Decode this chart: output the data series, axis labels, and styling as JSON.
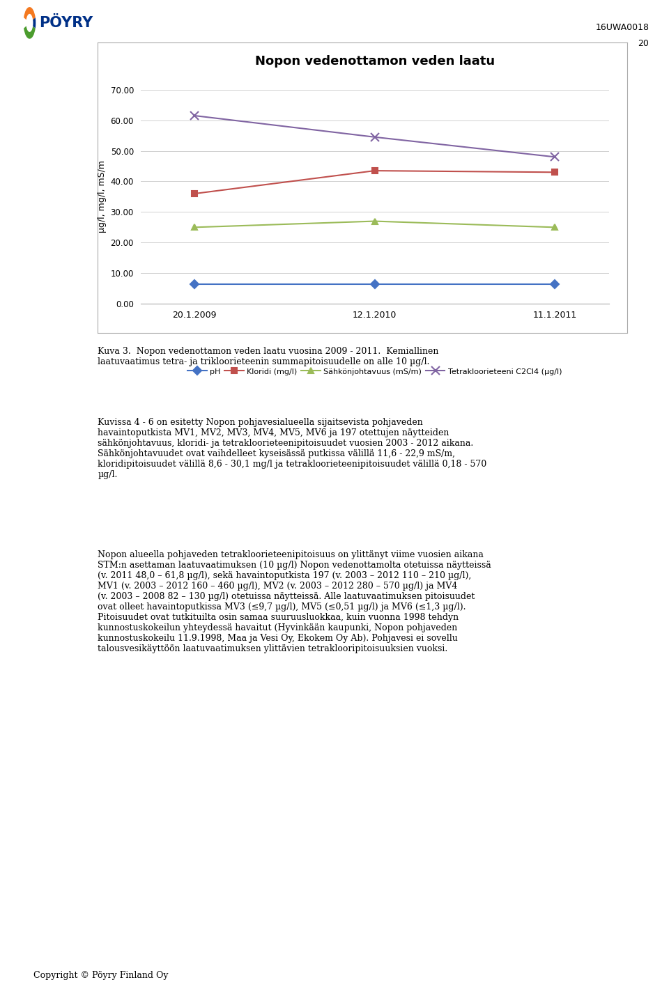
{
  "title": "Nopon vedenottamon veden laatu",
  "x_labels": [
    "20.1.2009",
    "12.1.2010",
    "11.1.2011"
  ],
  "x_positions": [
    0,
    1,
    2
  ],
  "series_order": [
    "pH",
    "Kloridi (mg/l)",
    "Sähkönjohtavuus (mS/m)",
    "Tetrakloorieteeni C2Cl4 (µg/l)"
  ],
  "series": {
    "pH": {
      "values": [
        6.5,
        6.5,
        6.5
      ],
      "color": "#4472C4",
      "marker": "D",
      "markersize": 6,
      "linewidth": 1.5
    },
    "Kloridi (mg/l)": {
      "values": [
        36.0,
        43.5,
        43.0
      ],
      "color": "#C0504D",
      "marker": "s",
      "markersize": 6,
      "linewidth": 1.5
    },
    "Sähkönjohtavuus (mS/m)": {
      "values": [
        25.0,
        27.0,
        25.0
      ],
      "color": "#9BBB59",
      "marker": "^",
      "markersize": 6,
      "linewidth": 1.5
    },
    "Tetrakloorieteeni C2Cl4 (µg/l)": {
      "values": [
        61.5,
        54.5,
        48.0
      ],
      "color": "#8064A2",
      "marker": "x",
      "markersize": 8,
      "linewidth": 1.5
    }
  },
  "ylim": [
    0,
    70
  ],
  "yticks": [
    0.0,
    10.0,
    20.0,
    30.0,
    40.0,
    50.0,
    60.0,
    70.0
  ],
  "ylabel": "µg/l, mg/l, mS/m",
  "grid_color": "#D0D0D0",
  "page_num_line1": "16UWA0018",
  "page_num_line2": "20",
  "logo_text": "PÖYRY",
  "caption": "Kuva 3.  Nopon vedenottamon veden laatu vuosina 2009 - 2011.  Kemiallinen\nlaatuvaatimus tetra- ja trikloorieteenin summapitoisuudelle on alle 10 µg/l.",
  "body1": "Kuvissa 4 - 6 on esitetty Nopon pohjavesialueella sijaitsevista pohjaveden\nhavaintoputkista MV1, MV2, MV3, MV4, MV5, MV6 ja 197 otettujen näytteiden\nsähkönjohtavuus, kloridi- ja tetrakloorieteenipitoisuudet vuosien 2003 - 2012 aikana.\nSähkönjohtavuudet ovat vaihdelleet kyseisässä putkissa välillä 11,6 - 22,9 mS/m,\nkloridipitoisuudet välillä 8,6 - 30,1 mg/l ja tetrakloorieteenipitoisuudet välillä 0,18 - 570\nµg/l.",
  "body2": "Nopon alueella pohjaveden tetrakloorieteenipitoisuus on ylittänyt viime vuosien aikana\nSTM:n asettaman laatuvaatimuksen (10 µg/l) Nopon vedenottamolta otetuissa näytteissä\n(v. 2011 48,0 – 61,8 µg/l), sekä havaintoputkista 197 (v. 2003 – 2012 110 – 210 µg/l),\nMV1 (v. 2003 – 2012 160 – 460 µg/l), MV2 (v. 2003 – 2012 280 – 570 µg/l) ja MV4\n(v. 2003 – 2008 82 – 130 µg/l) otetuissa näytteissä. Alle laatuvaatimuksen pitoisuudet\novat olleet havaintoputkissa MV3 (≤9,7 µg/l), MV5 (≤0,51 µg/l) ja MV6 (≤1,3 µg/l).\nPitoisuudet ovat tutkituilta osin samaa suuruusluokkaa, kuin vuonna 1998 tehdyn\nkunnostuskokeilun yhteydessä havaitut (Hyvinkään kaupunki, Nopon pohjaveden\nkunnostuskokeilu 11.9.1998, Maa ja Vesi Oy, Ekokem Oy Ab). Pohjavesi ei sovellu\ntalousvesikäyttöön laatuvaatimuksen ylittävien tetraklooripitoisuuksien vuoksi.",
  "footer": "Copyright © Pöyry Finland Oy"
}
